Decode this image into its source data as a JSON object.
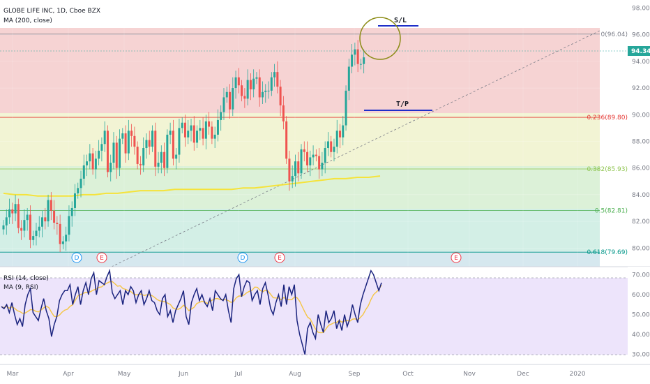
{
  "chart_data": {
    "type": "candlestick",
    "title": "GLOBE LIFE INC, 1D, Cboe BZX",
    "indicator_label": "MA (200, close)",
    "last_price": "94.34",
    "x_ticks": [
      "Mar",
      "Apr",
      "May",
      "Jun",
      "Jul",
      "Aug",
      "Sep",
      "Oct",
      "Nov",
      "Dec",
      "2020"
    ],
    "y_ticks": [
      "80.00",
      "82.00",
      "84.00",
      "86.00",
      "88.00",
      "90.00",
      "92.00",
      "94.00",
      "96.00",
      "98.00"
    ],
    "ylim": [
      78.6,
      98.6
    ],
    "fib_levels": [
      {
        "label": "0(96.04)",
        "value": 96.04,
        "color": "#787b86"
      },
      {
        "label": "0.236(89.80)",
        "value": 89.8,
        "color": "#e53935"
      },
      {
        "label": "0.382(85.93)",
        "value": 85.93,
        "color": "#8bc34a"
      },
      {
        "label": "0.5(82.81)",
        "value": 82.81,
        "color": "#4caf50"
      },
      {
        "label": "0.618(79.69)",
        "value": 79.69,
        "color": "#009688"
      }
    ],
    "annotations": [
      {
        "text": "S/L",
        "price": 96.2
      },
      {
        "text": "T/P",
        "price": 90.0
      }
    ],
    "events": [
      "D",
      "E",
      "D",
      "E",
      "E"
    ],
    "rsi": {
      "label": "RSI (14, close)",
      "ma_label": "MA (9, RSI)",
      "y_ticks": [
        "30.00",
        "40.00",
        "50.00",
        "60.00",
        "70.00"
      ],
      "ylim": [
        25,
        74
      ],
      "values": [
        54,
        53,
        55,
        51,
        56,
        50,
        45,
        48,
        44,
        55,
        60,
        63,
        51,
        49,
        47,
        53,
        58,
        52,
        48,
        39,
        45,
        49,
        57,
        60,
        62,
        62,
        65,
        55,
        60,
        64,
        55,
        62,
        66,
        60,
        68,
        71,
        60,
        67,
        66,
        65,
        69,
        72,
        61,
        58,
        60,
        62,
        55,
        62,
        60,
        64,
        62,
        56,
        60,
        62,
        55,
        58,
        62,
        57,
        56,
        52,
        50,
        58,
        60,
        49,
        52,
        46,
        52,
        55,
        58,
        62,
        49,
        45,
        56,
        60,
        63,
        57,
        60,
        56,
        54,
        58,
        52,
        62,
        60,
        58,
        57,
        60,
        52,
        46,
        63,
        68,
        70,
        59,
        64,
        67,
        66,
        57,
        60,
        62,
        55,
        63,
        66,
        60,
        53,
        50,
        56,
        60,
        54,
        65,
        55,
        64,
        60,
        65,
        47,
        40,
        35,
        30,
        43,
        46,
        41,
        38,
        50,
        45,
        41,
        52,
        46,
        48,
        52,
        43,
        47,
        42,
        50,
        44,
        48,
        55,
        50,
        46,
        55,
        60,
        64,
        68,
        72,
        70,
        66,
        62,
        66
      ]
    },
    "price_values": [
      81.7,
      82.3,
      82.9,
      82.6,
      83.3,
      81.5,
      81.3,
      82.1,
      82.5,
      80.6,
      80.9,
      81.3,
      81.6,
      82.3,
      82.0,
      83.6,
      82.8,
      81.9,
      81.8,
      80.3,
      80.5,
      81.0,
      82.4,
      83.0,
      84.1,
      84.5,
      85.2,
      86.2,
      86.5,
      87.1,
      85.9,
      86.7,
      87.3,
      87.8,
      88.8,
      85.7,
      86.4,
      87.9,
      86.0,
      88.2,
      88.6,
      87.1,
      88.8,
      88.4,
      87.6,
      86.3,
      86.2,
      87.5,
      88.1,
      87.6,
      88.8,
      86.1,
      86.4,
      87.2,
      86.0,
      88.5,
      88.8,
      86.7,
      87.0,
      89.0,
      89.4,
      88.3,
      88.8,
      89.2,
      87.9,
      88.8,
      89.0,
      88.2,
      89.5,
      89.1,
      88.2,
      88.5,
      89.6,
      90.2,
      91.3,
      91.7,
      90.4,
      92.0,
      92.8,
      92.2,
      91.4,
      91.2,
      92.6,
      91.9,
      92.7,
      92.8,
      91.3,
      91.7,
      91.8,
      91.8,
      92.8,
      93.2,
      92.1,
      90.7,
      89.5,
      86.7,
      85.0,
      85.4,
      86.5,
      85.6,
      87.4,
      87.2,
      86.2,
      86.8,
      87.0,
      86.9,
      85.9,
      86.4,
      87.5,
      88.0,
      87.2,
      87.6,
      88.8,
      88.3,
      89.2,
      91.8,
      93.6,
      94.5,
      94.9,
      93.8,
      93.8,
      94.3
    ],
    "ma200_values": [
      84.1,
      84.0,
      84.0,
      83.9,
      83.9,
      83.9,
      83.9,
      84.0,
      84.0,
      84.1,
      84.1,
      84.2,
      84.3,
      84.3,
      84.3,
      84.4,
      84.4,
      84.4,
      84.4,
      84.4,
      84.4,
      84.5,
      84.5,
      84.6,
      84.7,
      84.8,
      84.9,
      85.0,
      85.1,
      85.2,
      85.2,
      85.3,
      85.3,
      85.4
    ]
  }
}
